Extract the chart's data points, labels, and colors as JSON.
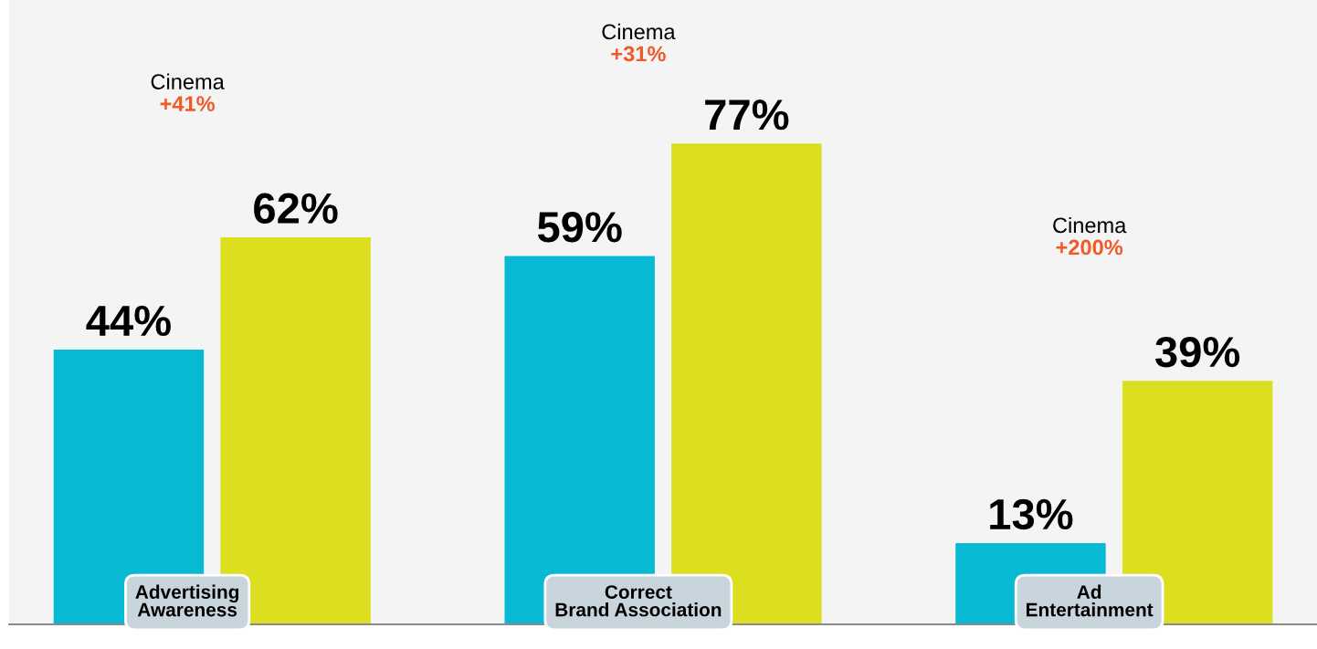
{
  "chart_data": {
    "type": "bar",
    "categories": [
      "Advertising Awareness",
      "Correct Brand Association",
      "Ad Entertainment"
    ],
    "series": [
      {
        "color": "#07b9d3",
        "values": [
          44,
          59,
          13
        ],
        "value_labels": [
          "44%",
          "59%",
          "13%"
        ]
      },
      {
        "color": "#dbdf20",
        "values": [
          62,
          77,
          39
        ],
        "value_labels": [
          "62%",
          "77%",
          "39%"
        ]
      }
    ],
    "ylim": [
      0,
      100
    ],
    "tick_labels": "x",
    "legend": false,
    "annotations": [
      "Cinema\n+41%",
      "Cinema\n+31%",
      "Cinema\n+200%"
    ]
  }
}
